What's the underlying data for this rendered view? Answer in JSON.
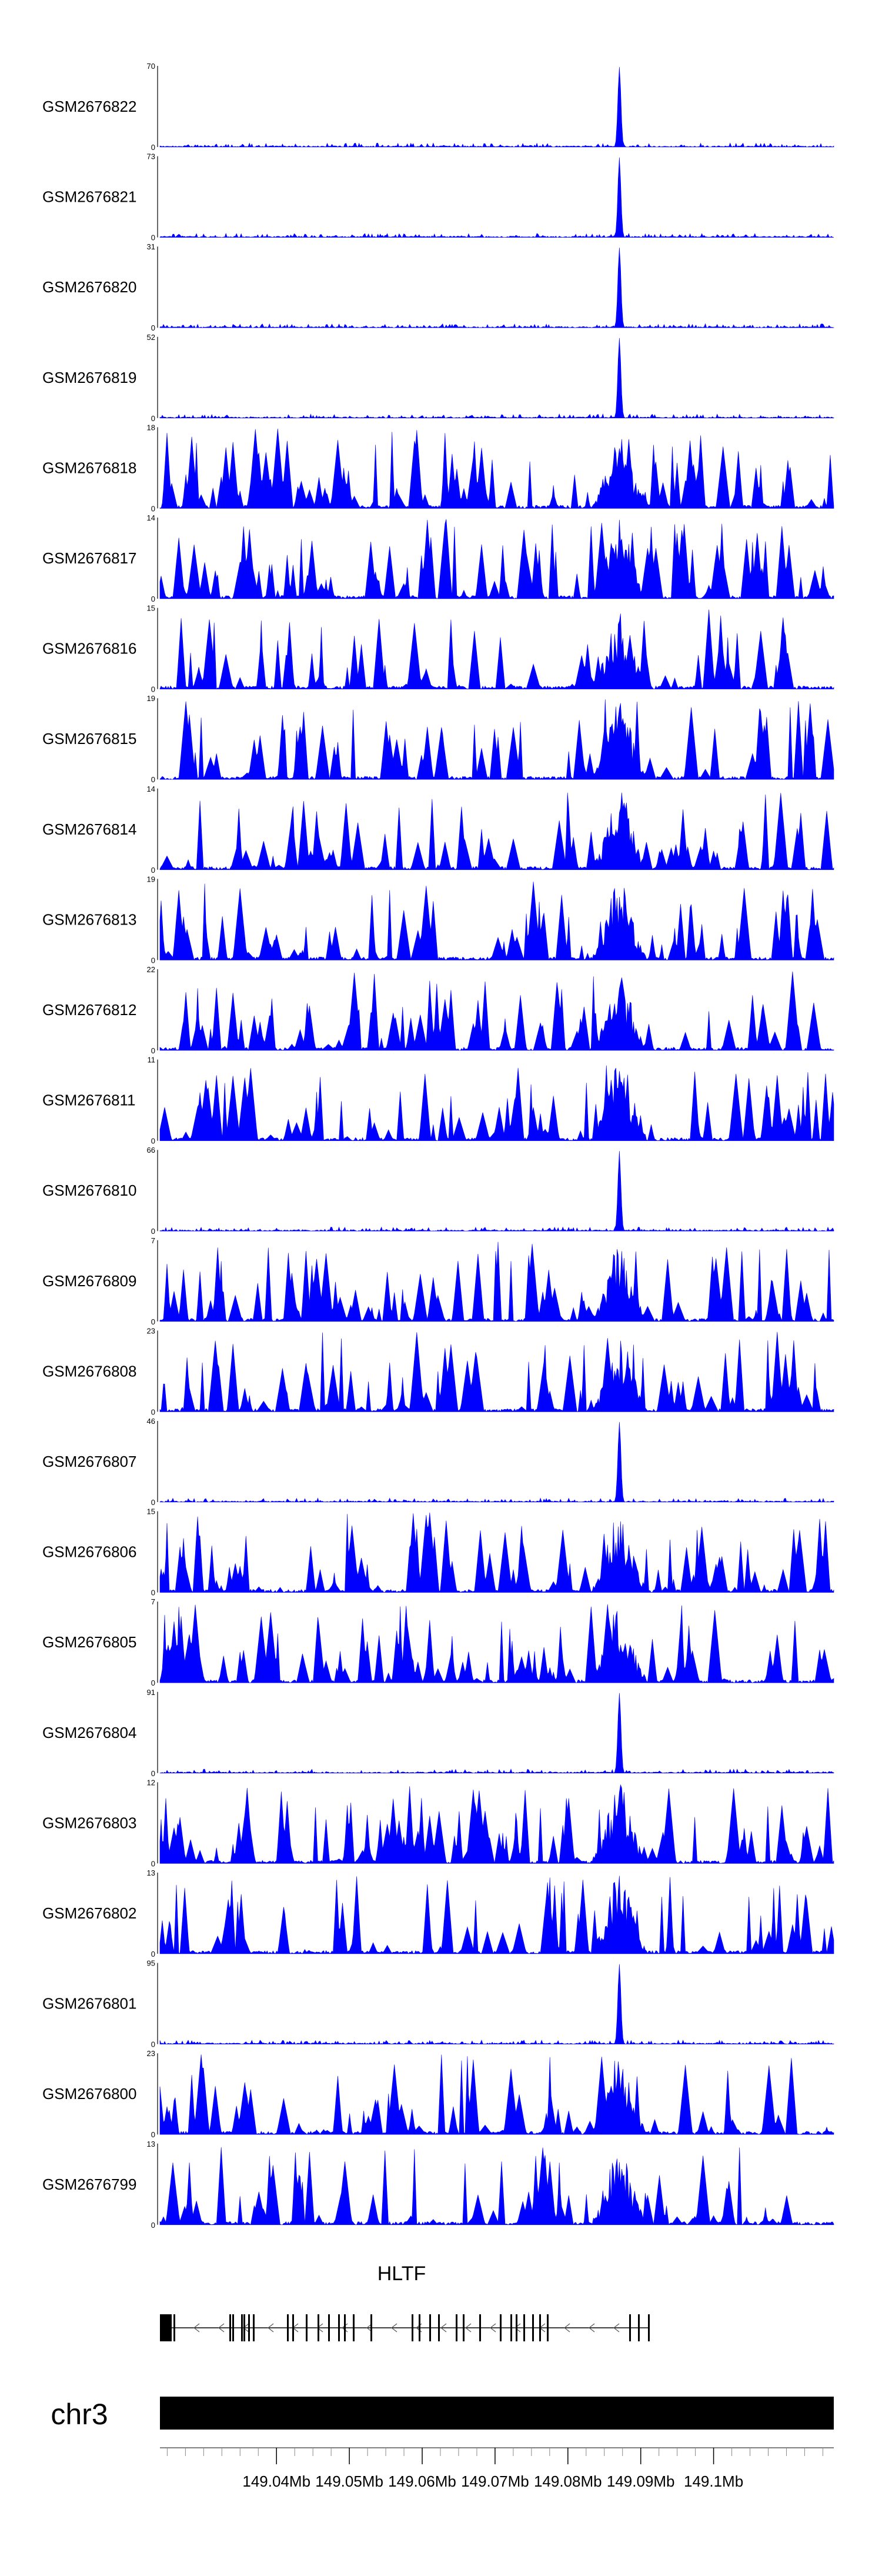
{
  "chart_data": {
    "type": "area",
    "title": "",
    "chromosome": "chr3",
    "gene": "HLTF",
    "fill_color": "#0000ff",
    "xlim_mb": [
      149.024,
      149.1165
    ],
    "peak_position_mb": 149.087,
    "axis_ticks": [
      {
        "pos": 149.04,
        "label": "149.04Mb"
      },
      {
        "pos": 149.05,
        "label": "149.05Mb"
      },
      {
        "pos": 149.06,
        "label": "149.06Mb"
      },
      {
        "pos": 149.07,
        "label": "149.07Mb"
      },
      {
        "pos": 149.08,
        "label": "149.08Mb"
      },
      {
        "pos": 149.09,
        "label": "149.09Mb"
      },
      {
        "pos": 149.1,
        "label": "149.1Mb"
      }
    ],
    "tracks": [
      {
        "name": "GSM2676822",
        "ymin": "0",
        "ymax": "70"
      },
      {
        "name": "GSM2676821",
        "ymin": "0",
        "ymax": "73"
      },
      {
        "name": "GSM2676820",
        "ymin": "0",
        "ymax": "31"
      },
      {
        "name": "GSM2676819",
        "ymin": "0",
        "ymax": "52"
      },
      {
        "name": "GSM2676818",
        "ymin": "0",
        "ymax": "18"
      },
      {
        "name": "GSM2676817",
        "ymin": "0",
        "ymax": "14"
      },
      {
        "name": "GSM2676816",
        "ymin": "0",
        "ymax": "15"
      },
      {
        "name": "GSM2676815",
        "ymin": "0",
        "ymax": "19"
      },
      {
        "name": "GSM2676814",
        "ymin": "0",
        "ymax": "14"
      },
      {
        "name": "GSM2676813",
        "ymin": "0",
        "ymax": "19"
      },
      {
        "name": "GSM2676812",
        "ymin": "0",
        "ymax": "22"
      },
      {
        "name": "GSM2676811",
        "ymin": "0",
        "ymax": "11"
      },
      {
        "name": "GSM2676810",
        "ymin": "0",
        "ymax": "66"
      },
      {
        "name": "GSM2676809",
        "ymin": "0",
        "ymax": "7"
      },
      {
        "name": "GSM2676808",
        "ymin": "0",
        "ymax": "23"
      },
      {
        "name": "GSM2676807",
        "ymin": "0",
        "ymax": "46"
      },
      {
        "name": "GSM2676806",
        "ymin": "0",
        "ymax": "15"
      },
      {
        "name": "GSM2676805",
        "ymin": "0",
        "ymax": "7"
      },
      {
        "name": "GSM2676804",
        "ymin": "0",
        "ymax": "91"
      },
      {
        "name": "GSM2676803",
        "ymin": "0",
        "ymax": "12"
      },
      {
        "name": "GSM2676802",
        "ymin": "0",
        "ymax": "13"
      },
      {
        "name": "GSM2676801",
        "ymin": "0",
        "ymax": "95"
      },
      {
        "name": "GSM2676800",
        "ymin": "0",
        "ymax": "23"
      },
      {
        "name": "GSM2676799",
        "ymin": "0",
        "ymax": "13"
      }
    ]
  }
}
